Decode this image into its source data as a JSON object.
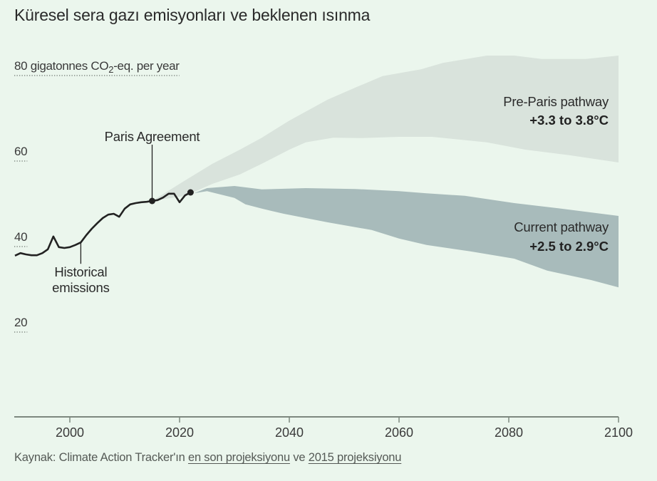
{
  "title": "Küresel sera gazı emisyonları ve beklenen ısınma",
  "source": {
    "prefix": "Kaynak: Climate Action Tracker'ın ",
    "link1": "en son projeksiyonu",
    "middle": " ve ",
    "link2": "2015 projeksiyonu"
  },
  "colors": {
    "background": "#ebf6ed",
    "historical_line": "#222222",
    "pre_paris_band": "#d9e3dc",
    "current_band": "#a8bbbb",
    "axis": "#7d887f"
  },
  "chart_data": {
    "type": "area",
    "title": "Küresel sera gazı emisyonları ve beklenen ısınma",
    "xlabel": "",
    "ylabel": "gigatonnes CO2-eq. per year",
    "xlim": [
      1990,
      2100
    ],
    "ylim": [
      0,
      80
    ],
    "x_ticks": [
      2000,
      2020,
      2040,
      2060,
      2080,
      2100
    ],
    "x_tick_labels": [
      "2000",
      "2020",
      "2040",
      "2060",
      "2080",
      "2100"
    ],
    "y_ticks": [
      {
        "value": 80,
        "label_pre": "80 gigatonnes CO",
        "label_sub": "2",
        "label_post": "-eq. per year"
      },
      {
        "value": 60,
        "label_pre": "60",
        "label_sub": "",
        "label_post": ""
      },
      {
        "value": 40,
        "label_pre": "40",
        "label_sub": "",
        "label_post": ""
      },
      {
        "value": 20,
        "label_pre": "20",
        "label_sub": "",
        "label_post": ""
      }
    ],
    "grid": false,
    "series": [
      {
        "name": "Historical emissions",
        "kind": "line",
        "x": [
          1990,
          1991,
          1992,
          1993,
          1994,
          1995,
          1996,
          1997,
          1998,
          1999,
          2000,
          2001,
          2002,
          2003,
          2004,
          2005,
          2006,
          2007,
          2008,
          2009,
          2010,
          2011,
          2012,
          2013,
          2014,
          2015,
          2016,
          2017,
          2018,
          2019,
          2020,
          2021,
          2022
        ],
        "y": [
          37.7,
          38.3,
          38.0,
          37.8,
          37.8,
          38.3,
          39.2,
          42.2,
          39.7,
          39.5,
          39.7,
          40.2,
          40.8,
          42.5,
          44.0,
          45.3,
          46.5,
          47.3,
          47.5,
          46.8,
          48.7,
          49.7,
          50.0,
          50.2,
          50.3,
          50.5,
          50.7,
          51.3,
          52.2,
          52.2,
          50.2,
          51.8,
          52.5
        ]
      },
      {
        "name": "Pre-Paris pathway",
        "kind": "band",
        "label": "Pre-Paris pathway",
        "warming": "+3.3 to 3.8°C",
        "upper": {
          "x": [
            2015,
            2021,
            2026,
            2031,
            2035,
            2040,
            2047,
            2052,
            2057,
            2064,
            2068,
            2076,
            2081,
            2086,
            2094,
            2100
          ],
          "y": [
            50.5,
            55.3,
            59.2,
            62.5,
            65.3,
            69.3,
            74.2,
            77.0,
            79.7,
            81.3,
            82.8,
            84.5,
            84.5,
            83.7,
            83.7,
            84.5
          ]
        },
        "lower": {
          "x": [
            2015,
            2021,
            2026,
            2031,
            2035,
            2040,
            2043,
            2048,
            2053,
            2060,
            2066,
            2076,
            2083,
            2091,
            2100
          ],
          "y": [
            50.5,
            51.7,
            54.5,
            56.7,
            59.2,
            62.5,
            64.2,
            65.3,
            65.2,
            65.5,
            65.5,
            64.2,
            62.5,
            61.2,
            59.5
          ]
        }
      },
      {
        "name": "Current pathway",
        "kind": "band",
        "label": "Current pathway",
        "warming": "+2.5 to 2.9°C",
        "upper": {
          "x": [
            2022.6,
            2025,
            2030,
            2035,
            2043,
            2052,
            2060,
            2065,
            2072,
            2081,
            2089,
            2100
          ],
          "y": [
            52.3,
            53.5,
            54.0,
            53.2,
            53.5,
            53.3,
            52.8,
            52.3,
            51.7,
            50.0,
            48.8,
            47.0
          ]
        },
        "lower": {
          "x": [
            2022.6,
            2025,
            2030,
            2032,
            2035,
            2039,
            2047,
            2055,
            2060,
            2065,
            2073,
            2081,
            2087,
            2095,
            2100
          ],
          "y": [
            52.3,
            52.8,
            51.2,
            49.7,
            48.7,
            47.5,
            45.5,
            43.7,
            41.7,
            40.2,
            38.7,
            37.0,
            34.2,
            32.0,
            30.3
          ]
        }
      }
    ],
    "annotations": [
      {
        "name": "paris-agreement",
        "text": "Paris Agreement",
        "x": 2015,
        "y": 50.5,
        "marker": true
      },
      {
        "name": "historical-emissions",
        "lines": [
          "Historical",
          "emissions"
        ],
        "x": 2002,
        "y": 40.8,
        "marker": false
      },
      {
        "name": "latest-point",
        "x": 2022,
        "y": 52.5,
        "marker": true
      }
    ]
  }
}
